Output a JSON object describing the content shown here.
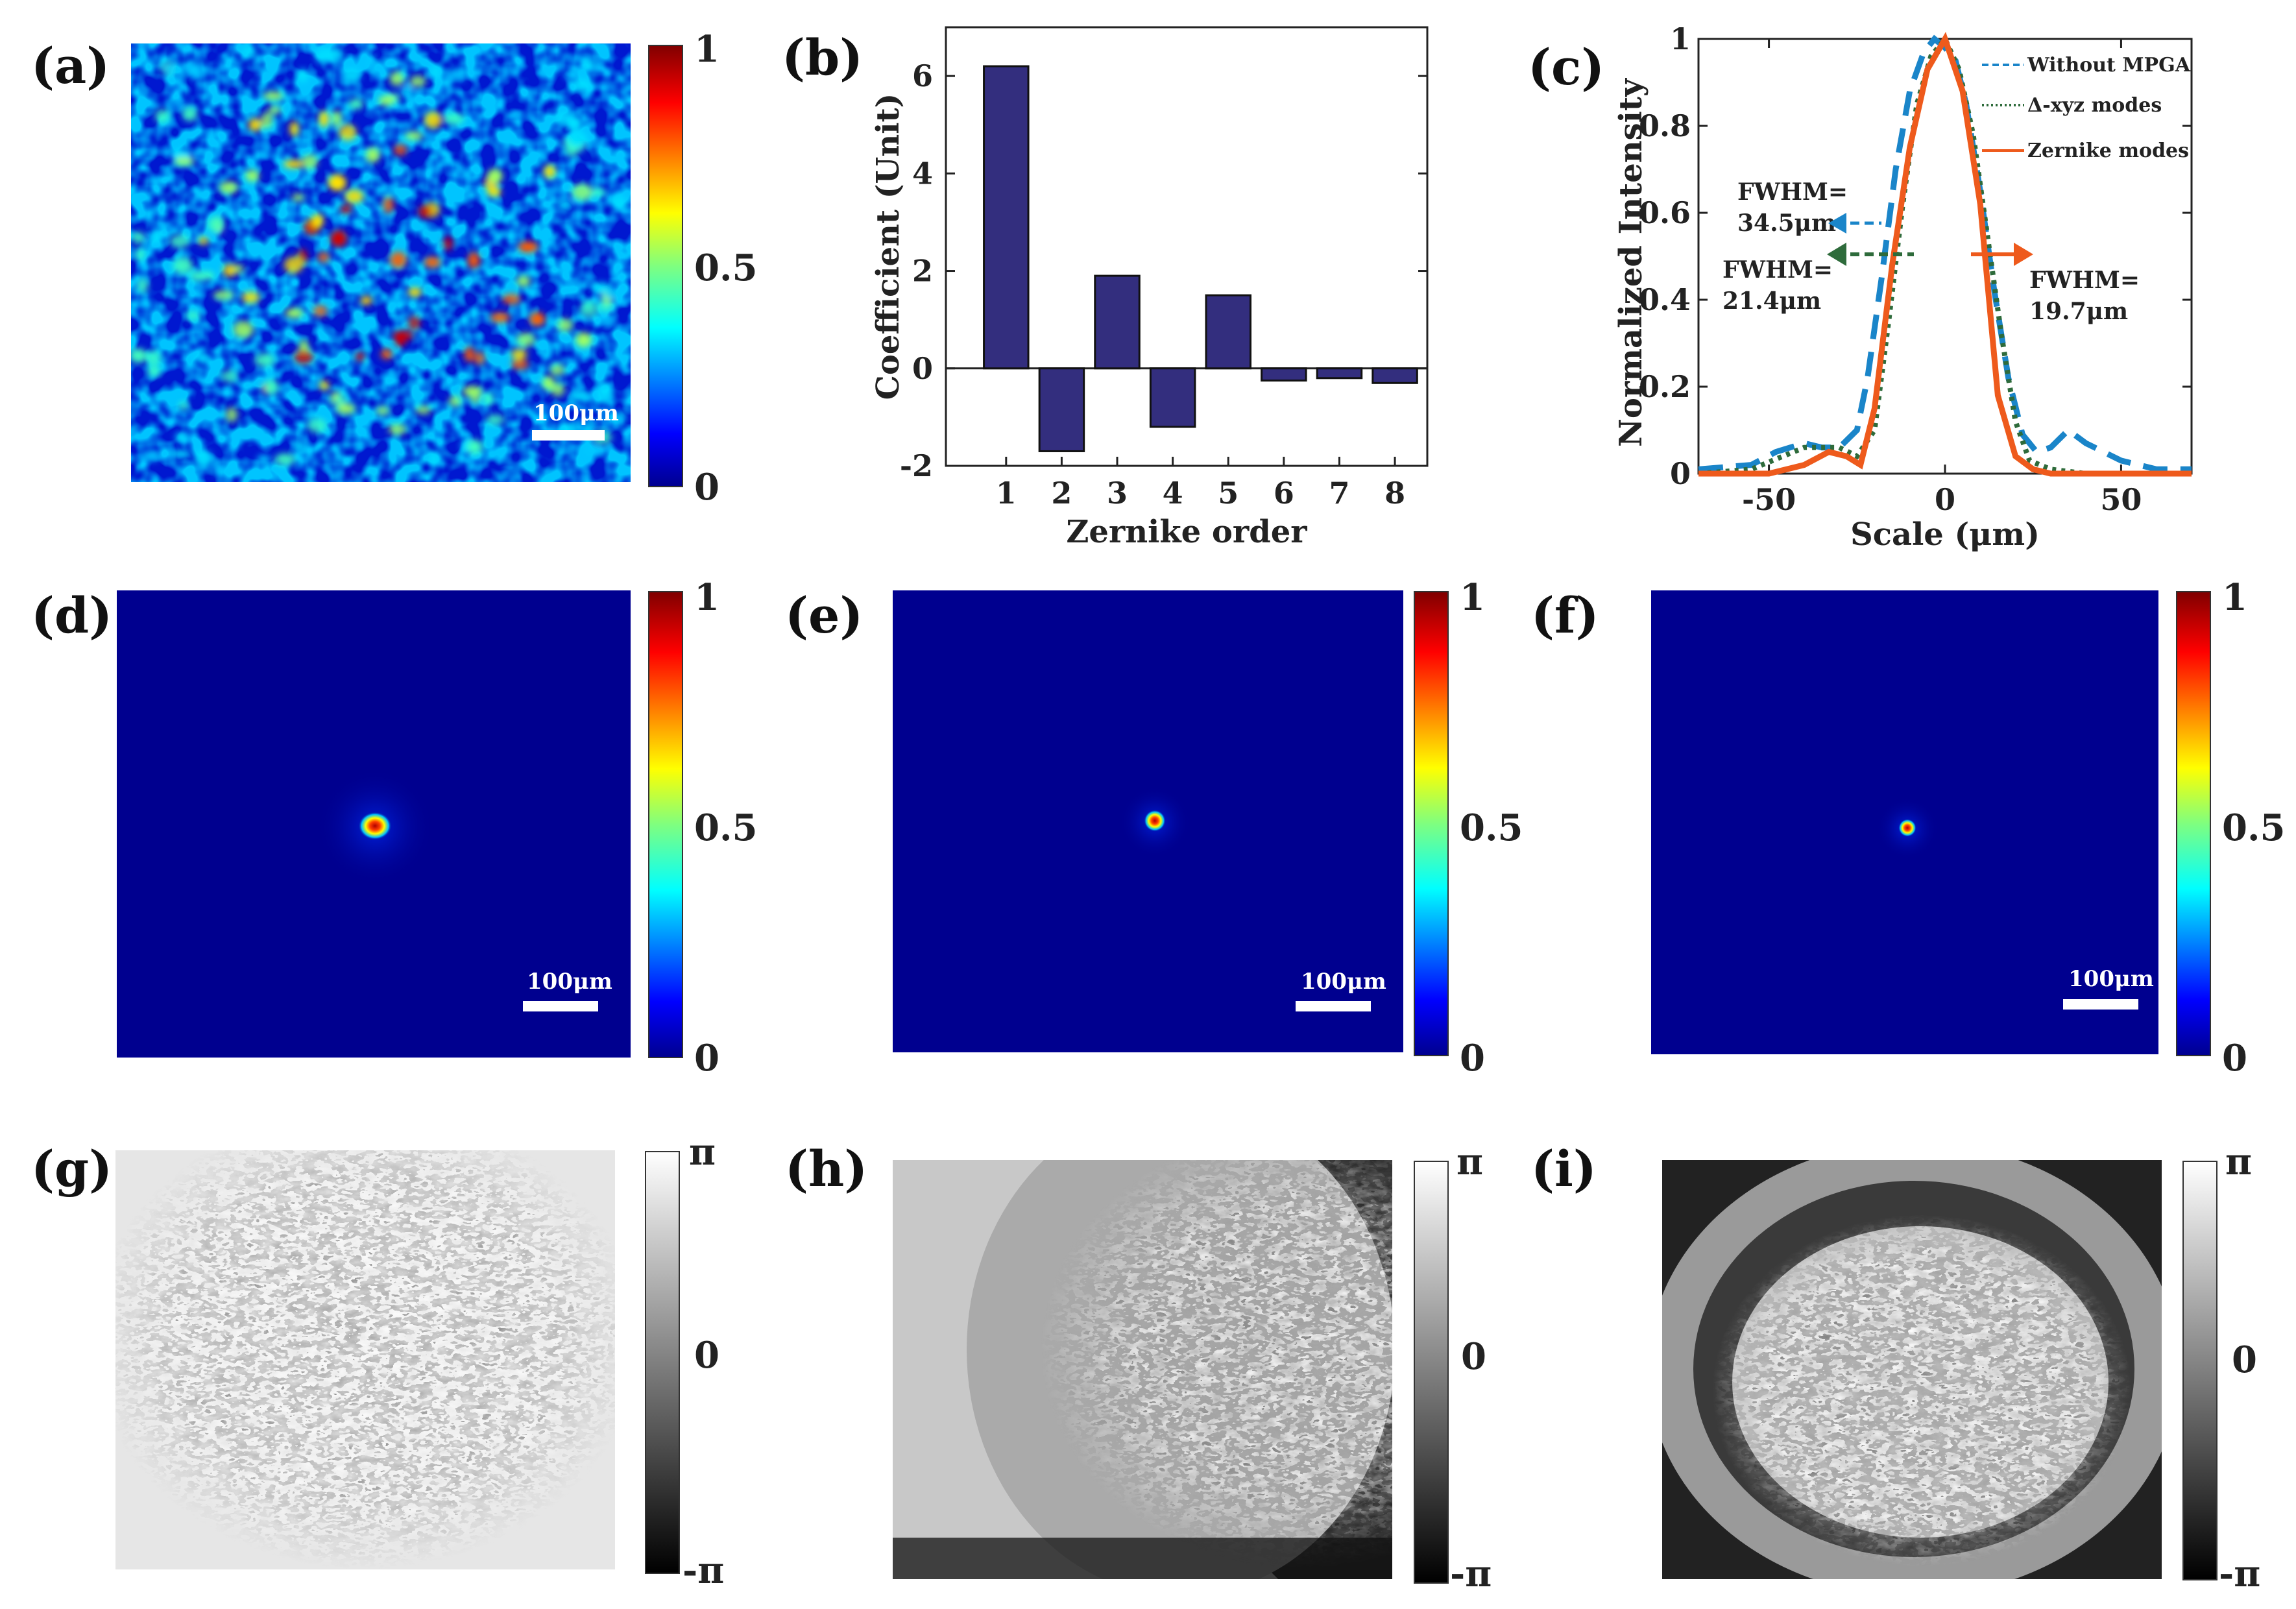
{
  "panels": {
    "a": {
      "label": "(a)",
      "scale_bar": "100μm"
    },
    "b": {
      "label": "(b)"
    },
    "c": {
      "label": "(c)"
    },
    "d": {
      "label": "(d)",
      "scale_bar": "100μm"
    },
    "e": {
      "label": "(e)",
      "scale_bar": "100μm"
    },
    "f": {
      "label": "(f)",
      "scale_bar": "100μm"
    },
    "g": {
      "label": "(g)"
    },
    "h": {
      "label": "(h)"
    },
    "i": {
      "label": "(i)"
    }
  },
  "colorbars": {
    "intensity_ticks": [
      "1",
      "0.5",
      "0"
    ],
    "phase_ticks": [
      "π",
      "0",
      "-π"
    ]
  },
  "colors": {
    "bar": "#332e7e",
    "dashed": "#1a85c9",
    "dotted": "#2e6b3b",
    "solid": "#ee5a1c",
    "jet_bg": "#00008f"
  },
  "chart_data": [
    {
      "type": "bar",
      "title": "",
      "xlabel": "Zernike order",
      "ylabel": "Coefficient (Unit)",
      "categories": [
        "1",
        "2",
        "3",
        "4",
        "5",
        "6",
        "7",
        "8"
      ],
      "values": [
        6.2,
        -1.7,
        1.9,
        -1.2,
        1.5,
        -0.25,
        -0.2,
        -0.3
      ],
      "ylim": [
        -2,
        7
      ],
      "yticks": [
        "-2",
        "0",
        "2",
        "4",
        "6"
      ]
    },
    {
      "type": "line",
      "title": "",
      "xlabel": "Scale (μm)",
      "ylabel": "Normalized Intensity",
      "xlim": [
        -70,
        70
      ],
      "ylim": [
        0,
        1
      ],
      "xticks": [
        "-50",
        "0",
        "50"
      ],
      "yticks": [
        "0",
        "0.2",
        "0.4",
        "0.6",
        "0.8",
        "1"
      ],
      "series": [
        {
          "name": "Without MPGA",
          "x": [
            -70,
            -55,
            -48,
            -40,
            -35,
            -30,
            -25,
            -22,
            -18,
            -14,
            -10,
            -6,
            -3,
            0,
            3,
            6,
            10,
            14,
            18,
            22,
            26,
            30,
            35,
            40,
            50,
            60,
            70
          ],
          "y": [
            0.01,
            0.02,
            0.05,
            0.07,
            0.06,
            0.06,
            0.1,
            0.22,
            0.45,
            0.7,
            0.88,
            0.97,
            1.0,
            0.98,
            0.95,
            0.85,
            0.65,
            0.42,
            0.22,
            0.09,
            0.05,
            0.06,
            0.1,
            0.07,
            0.03,
            0.01,
            0.01
          ]
        },
        {
          "name": "Δ-xyz modes",
          "x": [
            -70,
            -55,
            -40,
            -30,
            -25,
            -20,
            -16,
            -12,
            -8,
            -4,
            0,
            4,
            8,
            12,
            16,
            20,
            24,
            30,
            40,
            55,
            70
          ],
          "y": [
            0.0,
            0.01,
            0.06,
            0.06,
            0.04,
            0.1,
            0.35,
            0.62,
            0.85,
            0.96,
            1.0,
            0.93,
            0.78,
            0.55,
            0.32,
            0.12,
            0.03,
            0.01,
            0.0,
            0.0,
            0.0
          ]
        },
        {
          "name": "Zernike modes",
          "x": [
            -70,
            -50,
            -40,
            -33,
            -28,
            -24,
            -20,
            -15,
            -10,
            -5,
            0,
            5,
            10,
            15,
            20,
            25,
            30,
            50,
            70
          ],
          "y": [
            0.0,
            0.0,
            0.02,
            0.05,
            0.04,
            0.02,
            0.15,
            0.48,
            0.75,
            0.93,
            1.0,
            0.88,
            0.62,
            0.18,
            0.04,
            0.01,
            0.0,
            0.0,
            0.0
          ]
        }
      ],
      "annotations": [
        {
          "text": "FWHM=",
          "text2": "34.5μm"
        },
        {
          "text": "FWHM=",
          "text2": "21.4μm"
        },
        {
          "text": "FWHM=",
          "text2": "19.7μm"
        }
      ]
    }
  ]
}
